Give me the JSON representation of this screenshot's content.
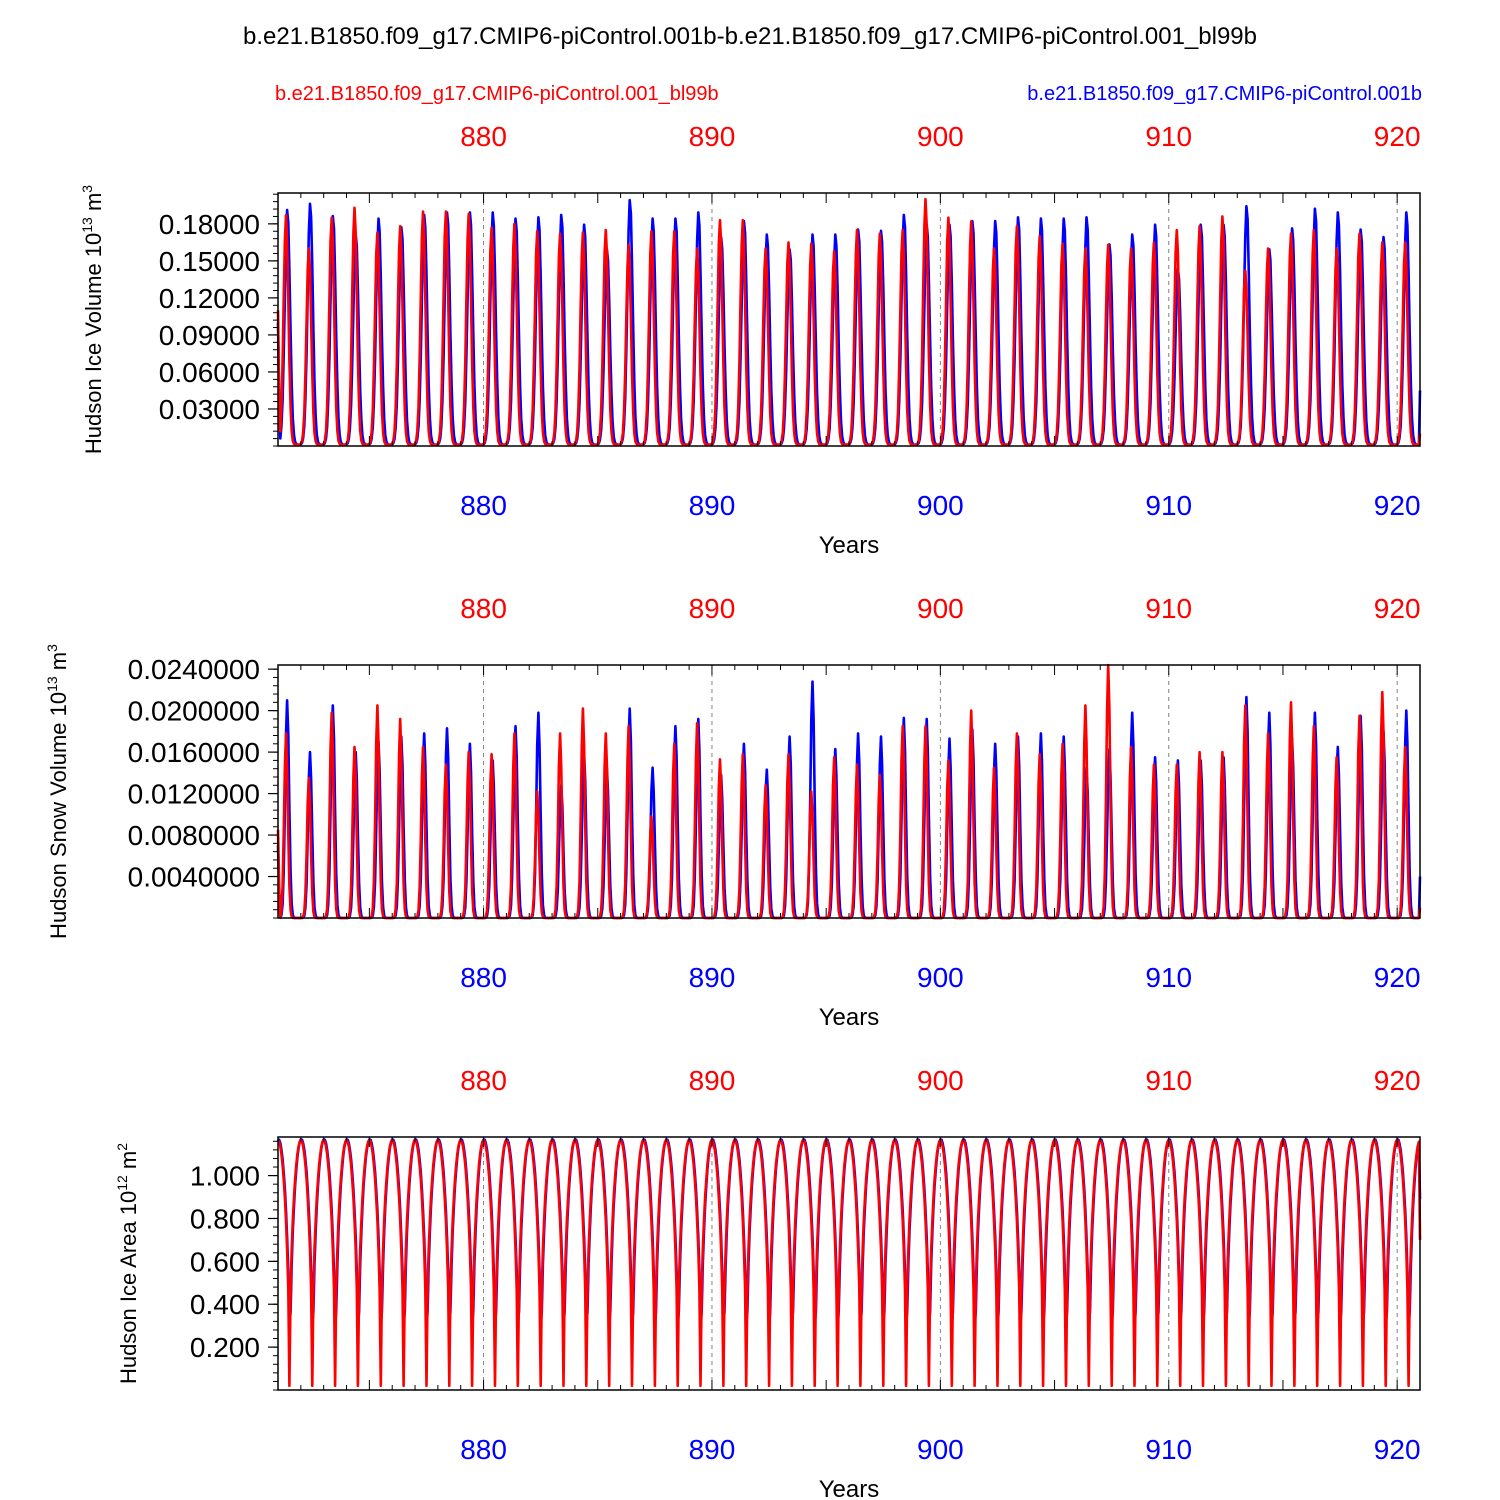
{
  "figure": {
    "title": "b.e21.B1850.f09_g17.CMIP6-piControl.001b-b.e21.B1850.f09_g17.CMIP6-piControl.001_bl99b",
    "legend_red": "b.e21.B1850.f09_g17.CMIP6-piControl.001_bl99b",
    "legend_blue": "b.e21.B1850.f09_g17.CMIP6-piControl.001b",
    "colors": {
      "red": "#ff0000",
      "blue": "#0000ff",
      "axis": "#000000",
      "grid": "#808080"
    }
  },
  "chart_data": [
    {
      "type": "line",
      "ylabel": "Hudson Ice Volume",
      "units_base": "10",
      "units_exp": "13",
      "units_unit": "m",
      "units_unit_exp": "3",
      "xlabel": "Years",
      "xlim": [
        871,
        921
      ],
      "ylim": [
        0,
        0.205
      ],
      "xticks": [
        880,
        890,
        900,
        910,
        920
      ],
      "xtick_labels": [
        "880",
        "890",
        "900",
        "910",
        "920"
      ],
      "yticks": [
        0.03,
        0.06,
        0.09,
        0.12,
        0.15,
        0.18
      ],
      "ytick_labels": [
        "0.03000",
        "0.06000",
        "0.09000",
        "0.12000",
        "0.15000",
        "0.18000"
      ],
      "series": [
        {
          "name": "b.e21.B1850.f09_g17.CMIP6-piControl.001b",
          "color": "blue",
          "start": 0.1,
          "phase": 0.06,
          "width": 0.115,
          "trough": 0.001,
          "end": 0.045,
          "peaks": [
            0.192,
            0.197,
            0.187,
            0.172,
            0.185,
            0.178,
            0.188,
            0.19,
            0.19,
            0.19,
            0.185,
            0.186,
            0.188,
            0.18,
            0.16,
            0.2,
            0.185,
            0.185,
            0.19,
            0.17,
            0.183,
            0.172,
            0.16,
            0.172,
            0.172,
            0.176,
            0.175,
            0.188,
            0.18,
            0.18,
            0.183,
            0.183,
            0.186,
            0.185,
            0.185,
            0.186,
            0.164,
            0.172,
            0.18,
            0.144,
            0.18,
            0.18,
            0.195,
            0.16,
            0.177,
            0.193,
            0.19,
            0.176,
            0.17,
            0.19
          ]
        },
        {
          "name": "b.e21.B1850.f09_g17.CMIP6-piControl.001_bl99b",
          "color": "red",
          "start": 0.11,
          "phase": 0.0,
          "width": 0.105,
          "trough": 0.001,
          "end": 0.01,
          "peaks": [
            0.187,
            0.16,
            0.185,
            0.193,
            0.173,
            0.178,
            0.19,
            0.19,
            0.188,
            0.177,
            0.18,
            0.174,
            0.172,
            0.173,
            0.175,
            0.163,
            0.174,
            0.174,
            0.16,
            0.183,
            0.183,
            0.16,
            0.165,
            0.164,
            0.158,
            0.175,
            0.172,
            0.175,
            0.2,
            0.185,
            0.182,
            0.16,
            0.178,
            0.17,
            0.164,
            0.16,
            0.163,
            0.16,
            0.165,
            0.175,
            0.178,
            0.186,
            0.142,
            0.16,
            0.172,
            0.175,
            0.16,
            0.172,
            0.165,
            0.165
          ]
        }
      ]
    },
    {
      "type": "line",
      "ylabel": "Hudson Snow Volume",
      "units_base": "10",
      "units_exp": "13",
      "units_unit": "m",
      "units_unit_exp": "3",
      "xlabel": "Years",
      "xlim": [
        871,
        921
      ],
      "ylim": [
        0,
        0.0244
      ],
      "xticks": [
        880,
        890,
        900,
        910,
        920
      ],
      "xtick_labels": [
        "880",
        "890",
        "900",
        "910",
        "920"
      ],
      "yticks": [
        0.004,
        0.008,
        0.012,
        0.016,
        0.02,
        0.024
      ],
      "ytick_labels": [
        "0.0040000",
        "0.0080000",
        "0.0120000",
        "0.0160000",
        "0.0200000",
        "0.0240000"
      ],
      "series": [
        {
          "name": "b.e21.B1850.f09_g17.CMIP6-piControl.001b",
          "color": "blue",
          "start": 0.007,
          "phase": 0.05,
          "width": 0.085,
          "trough": 0.0,
          "end": 0.004,
          "peaks": [
            0.021,
            0.016,
            0.0205,
            0.016,
            0.017,
            0.0175,
            0.0178,
            0.0183,
            0.0168,
            0.0152,
            0.0185,
            0.0198,
            0.0128,
            0.0158,
            0.0145,
            0.0202,
            0.0145,
            0.0185,
            0.0192,
            0.0138,
            0.0168,
            0.0143,
            0.0175,
            0.0228,
            0.0163,
            0.0178,
            0.0175,
            0.0193,
            0.0192,
            0.0173,
            0.0182,
            0.0168,
            0.0175,
            0.0178,
            0.0175,
            0.0145,
            0.0163,
            0.0198,
            0.0155,
            0.0152,
            0.0152,
            0.0155,
            0.0213,
            0.0198,
            0.0173,
            0.0198,
            0.0165,
            0.0195,
            0.018,
            0.02
          ]
        },
        {
          "name": "b.e21.B1850.f09_g17.CMIP6-piControl.001_bl99b",
          "color": "red",
          "start": 0.0085,
          "phase": 0.0,
          "width": 0.08,
          "trough": 0.0,
          "end": 0.001,
          "peaks": [
            0.0178,
            0.0135,
            0.0198,
            0.0165,
            0.0205,
            0.0192,
            0.0165,
            0.0148,
            0.016,
            0.0158,
            0.0178,
            0.0122,
            0.0178,
            0.0202,
            0.0178,
            0.0185,
            0.0098,
            0.0168,
            0.0188,
            0.0153,
            0.0158,
            0.0128,
            0.0158,
            0.0122,
            0.0155,
            0.0148,
            0.0138,
            0.0185,
            0.0185,
            0.0152,
            0.02,
            0.0145,
            0.0178,
            0.0158,
            0.0168,
            0.0205,
            0.0245,
            0.0165,
            0.0148,
            0.0148,
            0.016,
            0.016,
            0.0205,
            0.0178,
            0.0208,
            0.0185,
            0.0155,
            0.0195,
            0.0218,
            0.0165
          ]
        }
      ]
    },
    {
      "type": "line",
      "ylabel": "Hudson Ice Area",
      "units_base": "10",
      "units_exp": "12",
      "units_unit": "m",
      "units_unit_exp": "2",
      "xlabel": "Years",
      "xlim": [
        871,
        921
      ],
      "ylim": [
        0,
        1.18
      ],
      "xticks": [
        880,
        890,
        900,
        910,
        920
      ],
      "xtick_labels": [
        "880",
        "890",
        "900",
        "910",
        "920"
      ],
      "yticks": [
        0.2,
        0.4,
        0.6,
        0.8,
        1.0
      ],
      "ytick_labels": [
        "0.200",
        "0.400",
        "0.600",
        "0.800",
        "1.000"
      ],
      "series": [
        {
          "name": "b.e21.B1850.f09_g17.CMIP6-piControl.001b",
          "color": "blue",
          "start": 1.16,
          "phase": 0.02,
          "plateau": 1.17,
          "trough": 0.01,
          "end": 0.89,
          "mode": "area"
        },
        {
          "name": "b.e21.B1850.f09_g17.CMIP6-piControl.001_bl99b",
          "color": "red",
          "start": 1.16,
          "phase": 0.0,
          "plateau": 1.165,
          "trough": 0.02,
          "end": 0.7,
          "mode": "area"
        }
      ]
    }
  ]
}
